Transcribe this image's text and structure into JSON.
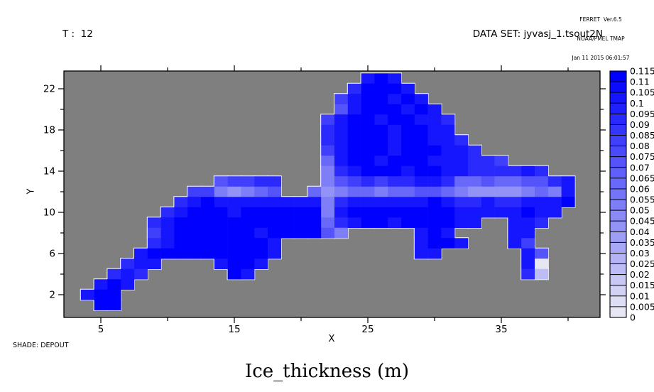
{
  "header": {
    "t_label": "T :  12",
    "dataset_label": "DATA SET: jyvasj_1.tsout2N",
    "provenance": [
      "FERRET  Ver.6.5",
      "NOAA/PMEL TMAP",
      "Jan 11 2015 06:01:57"
    ]
  },
  "footer": {
    "shade_label": "SHADE: DEPOUT",
    "title": "Ice_thickness (m)"
  },
  "chart_data": {
    "type": "heatmap",
    "title": "Ice_thickness (m)",
    "variable": "DEPOUT",
    "time_index": "T : 12",
    "xlabel": "X",
    "ylabel": "Y",
    "xlim": [
      2.2,
      42.4
    ],
    "ylim": [
      0.2,
      23.7
    ],
    "x_ticks_major": [
      5,
      15,
      25,
      35
    ],
    "x_ticks_minor": [
      10,
      20,
      30,
      40
    ],
    "y_ticks_major": [
      2,
      6,
      10,
      14,
      18,
      22
    ],
    "y_ticks_minor": [
      4,
      8,
      12,
      16,
      20
    ],
    "grid_lines": "off",
    "missing_color": "#7f7f7f",
    "palette": {
      "low": "#f2f2f2",
      "high": "#0000ff"
    },
    "colorbar": {
      "position": "right",
      "min": 0,
      "max": 0.115,
      "step": 0.005,
      "labels": [
        "0.115",
        "0.11",
        "0.105",
        "0.1",
        "0.095",
        "0.09",
        "0.085",
        "0.08",
        "0.075",
        "0.07",
        "0.065",
        "0.06",
        "0.055",
        "0.05",
        "0.045",
        "0.04",
        "0.035",
        "0.03",
        "0.025",
        "0.02",
        "0.015",
        "0.01",
        "0.005",
        "0"
      ]
    },
    "grid": {
      "x_start": 3,
      "x_end": 42,
      "y_top": 23,
      "y_bottom": 1,
      "encoding": {
        "a": 0.115,
        "b": 0.105,
        "c": 0.095,
        "d": 0.085,
        "e": 0.075,
        "f": 0.065,
        "g": 0.055,
        "h": 0.045,
        "i": 0.035,
        "j": 0.025,
        "k": 0.015,
        "l": 0.005,
        ".": null
      },
      "rows_top_to_bottom": [
        "......................bab...............",
        ".....................caaab..............",
        "....................dbaabab.............",
        "....................ebaaabab............",
        "...................dbaabaabbc...........",
        "...................cbaaabaabb...........",
        "...................cbaaabaabbc..........",
        "...................dbaaabaaabbc.........",
        "...................fbaabaaabbbccd.......",
        "...................gcbaaabaabbccccbc....",
        "...........eddcc...gedcdccbbcffeffeecb..",
        ".........ddghgfe..fhgffgffeefghhhhgfgb..",
        "........cbabbbbbbbbgcbbbbbbabccbccbbba..",
        ".......cbaaabaaaaaagbaaaaaaaabbbbbabb...",
        "......cbaaaaaaaaaaafcbaabaaaabb..bbc....",
        "......dbaaaaaabaaaaeg.....bab....bb.....",
        "......cbaaaaaaab..........baab...bd.....",
        ".....baaaaaaaaab..........bb......be....",
        "....cbb....baab...................bl....",
        "...cbc......ab....................cj....",
        "..bab...................................",
        ".baa....................................",
        "..aa...................................."
      ]
    }
  }
}
